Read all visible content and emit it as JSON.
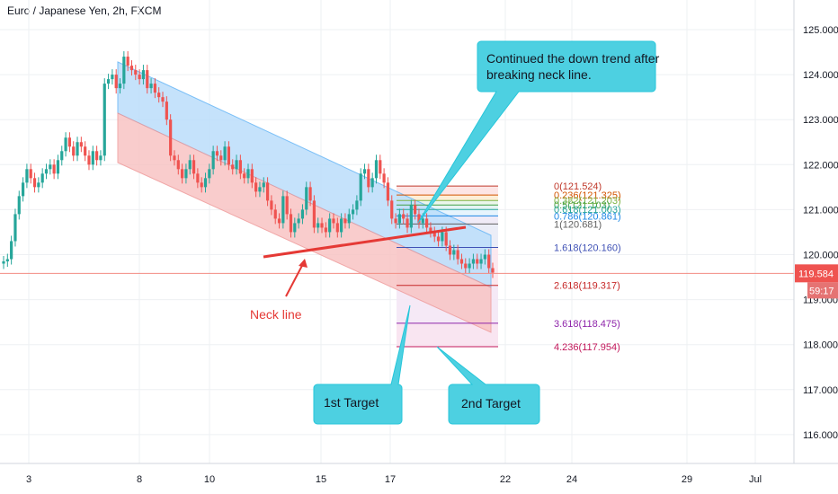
{
  "symbol_label": "Euro / Japanese Yen, 2h, FXCM",
  "chart_data": {
    "type": "candlestick",
    "title": "Euro / Japanese Yen, 2h, FXCM",
    "y_ticks": [
      "125.000",
      "124.000",
      "123.000",
      "122.000",
      "121.000",
      "120.000",
      "119.000",
      "118.000",
      "117.000",
      "116.000"
    ],
    "y_tick_values": [
      125,
      124,
      123,
      122,
      121,
      120,
      119,
      118,
      117,
      116
    ],
    "x_ticks": [
      "3",
      "8",
      "10",
      "15",
      "17",
      "22",
      "24",
      "29",
      "Jul"
    ],
    "last_price": "119.584",
    "countdown": "59:17",
    "colors": {
      "up": "#26a69a",
      "down": "#ef5350",
      "last_price": "#ef5350",
      "channel_upper": "#90caf9",
      "channel_lower": "#f4a6a6",
      "neck_line": "#e53935",
      "callout": "#4dd0e1"
    },
    "candle_closes": [
      119.85,
      119.9,
      120.3,
      120.9,
      121.3,
      121.6,
      121.9,
      121.7,
      121.5,
      121.6,
      121.8,
      121.9,
      122.0,
      121.8,
      122.1,
      122.3,
      122.6,
      122.4,
      122.2,
      122.5,
      122.4,
      122.2,
      122.0,
      122.3,
      122.1,
      122.2,
      123.8,
      123.9,
      124.0,
      123.7,
      123.8,
      124.4,
      124.2,
      124.1,
      124.0,
      123.9,
      124.1,
      123.7,
      123.8,
      123.6,
      123.5,
      123.4,
      123.0,
      122.2,
      122.1,
      121.9,
      121.7,
      121.9,
      122.1,
      121.8,
      121.6,
      121.5,
      121.7,
      121.9,
      122.3,
      122.2,
      122.1,
      122.4,
      122.0,
      121.9,
      122.1,
      121.8,
      121.7,
      121.9,
      121.6,
      121.4,
      121.5,
      121.6,
      121.2,
      121.0,
      120.8,
      120.7,
      121.3,
      120.9,
      120.5,
      120.7,
      120.8,
      121.0,
      121.5,
      121.2,
      120.6,
      120.7,
      120.6,
      120.5,
      120.8,
      120.7,
      120.5,
      120.8,
      120.7,
      120.9,
      121.0,
      121.2,
      121.8,
      121.9,
      121.5,
      121.7,
      122.1,
      121.8,
      121.6,
      121.2,
      120.8,
      120.7,
      120.9,
      120.8,
      120.6,
      121.1,
      120.9,
      120.7,
      120.8,
      120.6,
      120.5,
      120.4,
      120.3,
      120.5,
      120.2,
      120.0,
      120.1,
      119.9,
      119.8,
      119.7,
      119.8,
      119.9,
      119.8,
      119.9,
      120.0,
      119.7,
      119.6
    ],
    "fib_levels": [
      {
        "label": "0(121.524)",
        "value": 121.524,
        "color": "#c0392b"
      },
      {
        "label": "0.236(121.325)",
        "value": 121.325,
        "color": "#d35400"
      },
      {
        "label": "0.382(121.203)",
        "value": 121.203,
        "color": "#7cb342"
      },
      {
        "label": "0.5(121.103)",
        "value": 121.103,
        "color": "#43a047"
      },
      {
        "label": "0.618(121.003)",
        "value": 121.003,
        "color": "#26a69a"
      },
      {
        "label": "0.786(120.861)",
        "value": 120.861,
        "color": "#1e88e5"
      },
      {
        "label": "1(120.681)",
        "value": 120.681,
        "color": "#616161"
      },
      {
        "label": "1.618(120.160)",
        "value": 120.16,
        "color": "#3f51b5"
      },
      {
        "label": "2.618(119.317)",
        "value": 119.317,
        "color": "#c62828"
      },
      {
        "label": "3.618(118.475)",
        "value": 118.475,
        "color": "#8e24aa"
      },
      {
        "label": "4.236(117.954)",
        "value": 117.954,
        "color": "#c2185b"
      }
    ],
    "annotations": {
      "callout_top": [
        "Continued the down trend after",
        "breaking neck line."
      ],
      "neck_line_label": "Neck line",
      "target1": "1st Target",
      "target2": "2nd Target"
    }
  }
}
